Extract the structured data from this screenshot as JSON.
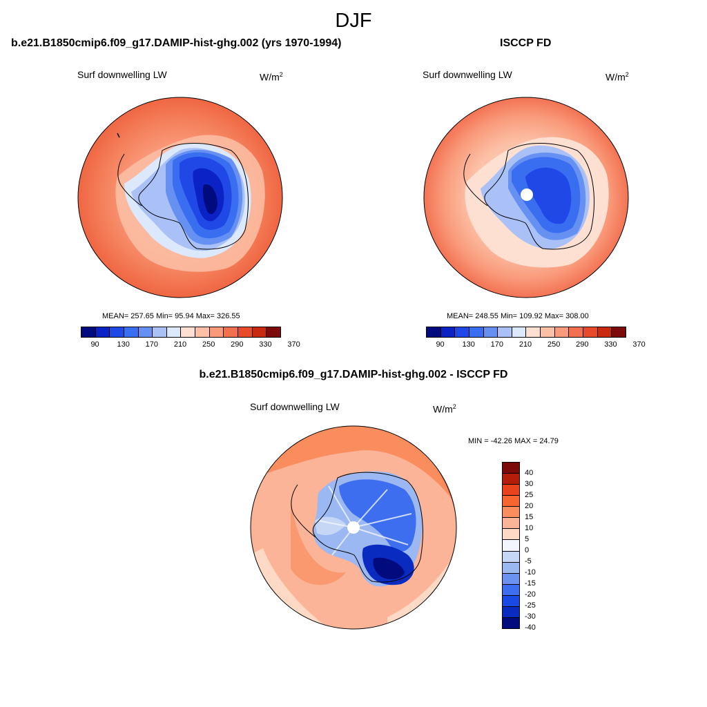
{
  "figure": {
    "season": "DJF"
  },
  "panels": [
    {
      "title": "b.e21.B1850cmip6.f09_g17.DAMIP-hist-ghg.002 (yrs 1970-1994)",
      "variable": "Surf downwelling LW",
      "units": "W/m",
      "units_sup": "2",
      "stats": "MEAN= 257.65  Min=  95.94  Max= 326.55",
      "colorbar_ticks": [
        "90",
        "130",
        "170",
        "210",
        "250",
        "290",
        "330",
        "370"
      ]
    },
    {
      "title": "ISCCP FD",
      "variable": "Surf downwelling LW",
      "units": "W/m",
      "units_sup": "2",
      "stats": "MEAN= 248.55  Min= 109.92  Max= 308.00",
      "colorbar_ticks": [
        "90",
        "130",
        "170",
        "210",
        "250",
        "290",
        "330",
        "370"
      ]
    },
    {
      "title": "b.e21.B1850cmip6.f09_g17.DAMIP-hist-ghg.002 - ISCCP FD",
      "variable": "Surf downwelling LW",
      "units": "W/m",
      "units_sup": "2",
      "stats": "MIN = -42.26 MAX =  24.79",
      "colorbar_ticks": [
        "40",
        "30",
        "25",
        "20",
        "15",
        "10",
        "5",
        "0",
        "-5",
        "-10",
        "-15",
        "-20",
        "-25",
        "-30",
        "-40"
      ]
    }
  ],
  "colors": {
    "abs_scale": [
      "#020b7e",
      "#0b22c5",
      "#1f48e6",
      "#3a6ef0",
      "#6691f2",
      "#a9c1f7",
      "#dce8fb",
      "#fde0d2",
      "#fcc0a6",
      "#f99a7a",
      "#f26f4f",
      "#e84a2a",
      "#c92a0f",
      "#7d0a0a"
    ],
    "diff_scale": [
      "#7d0a0a",
      "#b31d0a",
      "#e8431c",
      "#f86531",
      "#f98d5e",
      "#fbb497",
      "#fdd9c6",
      "#f2f5fd",
      "#c6d7f5",
      "#9bb8f2",
      "#6b92f0",
      "#3d6ef0",
      "#1a4ae4",
      "#0a2bc0",
      "#020b7e"
    ],
    "background": "#ffffff"
  }
}
